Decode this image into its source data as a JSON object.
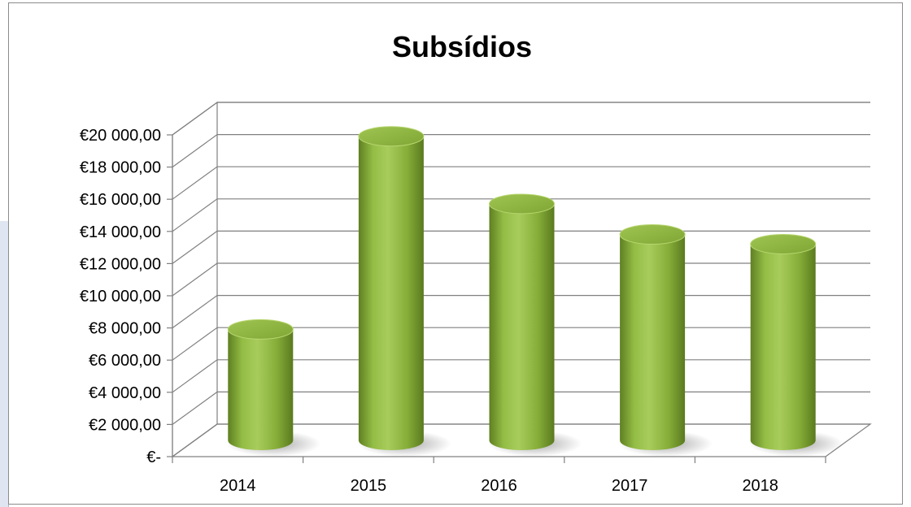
{
  "chart_data": {
    "type": "bar",
    "title": "Subsídios",
    "xlabel": "",
    "ylabel": "",
    "categories": [
      "2014",
      "2015",
      "2016",
      "2017",
      "2018"
    ],
    "values": [
      6900,
      18900,
      14700,
      12800,
      12200
    ],
    "ylim": [
      0,
      20000
    ],
    "ytick_values": [
      0,
      2000,
      4000,
      6000,
      8000,
      10000,
      12000,
      14000,
      16000,
      18000,
      20000
    ],
    "ytick_labels": [
      "€-",
      "€2 000,00",
      "€4 000,00",
      "€6 000,00",
      "€8 000,00",
      "€10 000,00",
      "€12 000,00",
      "€14 000,00",
      "€16 000,00",
      "€18 000,00",
      "€20 000,00"
    ],
    "grid": true,
    "legend": "none",
    "style": "3d-cylinder",
    "bar_color": "#8db53c"
  }
}
